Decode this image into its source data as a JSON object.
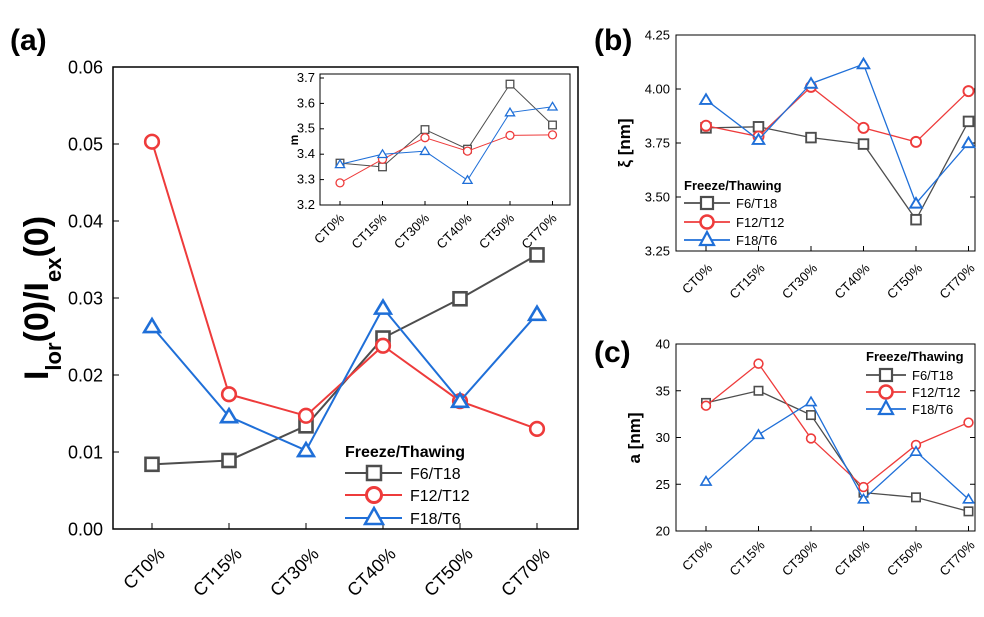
{
  "colors": {
    "F6/T18": "#4d4d4d",
    "F12/T12": "#ee3b3b",
    "F18/T6": "#1f6fd8"
  },
  "chart_data": [
    {
      "id": "a",
      "panel_label": "(a)",
      "type": "line",
      "categories": [
        "CT0%",
        "CT15%",
        "CT30%",
        "CT40%",
        "CT50%",
        "CT70%"
      ],
      "ylabel_main": "I",
      "ylabel_sub1": "lor",
      "ylabel_mid": "(0)/I",
      "ylabel_sub2": "ex",
      "ylabel_end": "(0)",
      "ylim": [
        0,
        0.06
      ],
      "yticks": [
        "0.00",
        "0.01",
        "0.02",
        "0.03",
        "0.04",
        "0.05",
        "0.06"
      ],
      "legend_title": "Freeze/Thawing",
      "series": [
        {
          "name": "F6/T18",
          "marker": "square",
          "values": [
            0.0084,
            0.0089,
            0.0134,
            0.0248,
            0.0299,
            0.0356
          ]
        },
        {
          "name": "F12/T12",
          "marker": "circle",
          "values": [
            0.0503,
            0.0175,
            0.0147,
            0.0238,
            0.0166,
            0.013
          ]
        },
        {
          "name": "F18/T6",
          "marker": "triangle",
          "values": [
            0.0263,
            0.0146,
            0.0102,
            0.0287,
            0.0166,
            0.0279
          ]
        }
      ]
    },
    {
      "id": "a_inset",
      "type": "line",
      "categories": [
        "CT0%",
        "CT15%",
        "CT30%",
        "CT40%",
        "CT50%",
        "CT70%"
      ],
      "ylabel": "m",
      "ylim": [
        3.2,
        3.7
      ],
      "yticks": [
        "3.2",
        "3.3",
        "3.4",
        "3.5",
        "3.6",
        "3.7"
      ],
      "series": [
        {
          "name": "F6/T18",
          "values": [
            3.365,
            3.35,
            3.497,
            3.42,
            3.676,
            3.515
          ]
        },
        {
          "name": "F12/T12",
          "values": [
            3.287,
            3.38,
            3.465,
            3.412,
            3.474,
            3.476
          ]
        },
        {
          "name": "F18/T6",
          "values": [
            3.36,
            3.4,
            3.412,
            3.298,
            3.564,
            3.587
          ]
        }
      ]
    },
    {
      "id": "b",
      "panel_label": "(b)",
      "type": "line",
      "categories": [
        "CT0%",
        "CT15%",
        "CT30%",
        "CT40%",
        "CT50%",
        "CT70%"
      ],
      "ylabel": "ξ [nm]",
      "ylim": [
        3.25,
        4.25
      ],
      "yticks": [
        "3.25",
        "3.50",
        "3.75",
        "4.00",
        "4.25"
      ],
      "legend_title": "Freeze/Thawing",
      "series": [
        {
          "name": "F6/T18",
          "values": [
            3.82,
            3.825,
            3.775,
            3.745,
            3.395,
            3.85
          ]
        },
        {
          "name": "F12/T12",
          "values": [
            3.83,
            3.78,
            4.01,
            3.82,
            3.755,
            3.99
          ]
        },
        {
          "name": "F18/T6",
          "values": [
            3.95,
            3.765,
            4.025,
            4.115,
            3.47,
            3.75
          ]
        }
      ]
    },
    {
      "id": "c",
      "panel_label": "(c)",
      "type": "line",
      "categories": [
        "CT0%",
        "CT15%",
        "CT30%",
        "CT40%",
        "CT50%",
        "CT70%"
      ],
      "ylabel": "a [nm]",
      "ylim": [
        20,
        40
      ],
      "yticks": [
        "20",
        "25",
        "30",
        "35",
        "40"
      ],
      "legend_title": "Freeze/Thawing",
      "series": [
        {
          "name": "F6/T18",
          "values": [
            33.7,
            35.0,
            32.4,
            24.1,
            23.6,
            22.1
          ]
        },
        {
          "name": "F12/T12",
          "values": [
            33.4,
            37.9,
            29.9,
            24.7,
            29.2,
            31.6
          ]
        },
        {
          "name": "F18/T6",
          "values": [
            25.3,
            30.3,
            33.8,
            23.4,
            28.5,
            23.4
          ]
        }
      ]
    }
  ]
}
